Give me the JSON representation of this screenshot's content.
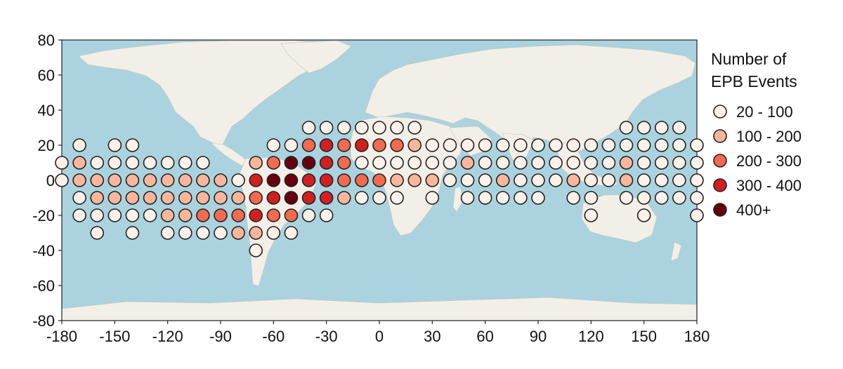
{
  "chart_data": {
    "type": "scatter",
    "title": "",
    "xlabel": "",
    "ylabel": "",
    "xlim": [
      -180,
      180
    ],
    "ylim": [
      -80,
      80
    ],
    "xticks": [
      "-180",
      "-150",
      "-120",
      "-90",
      "-60",
      "-30",
      "0",
      "30",
      "60",
      "90",
      "120",
      "150",
      "180"
    ],
    "yticks": [
      "80",
      "60",
      "40",
      "20",
      "0",
      "-20",
      "-40",
      "-60",
      "-80"
    ],
    "legend": {
      "title_lines": [
        "Number of",
        "EPB Events"
      ],
      "placement": "right",
      "bins": [
        {
          "label": "20 - 100",
          "color": "#fdf1ea"
        },
        {
          "label": "100 - 200",
          "color": "#f9b69c"
        },
        {
          "label": "200 - 300",
          "color": "#f26a4f"
        },
        {
          "label": "300 - 400",
          "color": "#d02022"
        },
        {
          "label": "400+",
          "color": "#67000d"
        }
      ]
    },
    "colors": {
      "ocean": "#aad3df",
      "land": "#f2efe9",
      "marker_edge": "#222222"
    },
    "points": [
      {
        "lon": -40,
        "lat": 30,
        "bin": 0
      },
      {
        "lon": -30,
        "lat": 30,
        "bin": 0
      },
      {
        "lon": -20,
        "lat": 30,
        "bin": 0
      },
      {
        "lon": -10,
        "lat": 30,
        "bin": 0
      },
      {
        "lon": 0,
        "lat": 30,
        "bin": 0
      },
      {
        "lon": 10,
        "lat": 30,
        "bin": 0
      },
      {
        "lon": 20,
        "lat": 30,
        "bin": 0
      },
      {
        "lon": 140,
        "lat": 30,
        "bin": 0
      },
      {
        "lon": 150,
        "lat": 30,
        "bin": 0
      },
      {
        "lon": 160,
        "lat": 30,
        "bin": 0
      },
      {
        "lon": 170,
        "lat": 30,
        "bin": 0
      },
      {
        "lon": -170,
        "lat": 20,
        "bin": 0
      },
      {
        "lon": -150,
        "lat": 20,
        "bin": 0
      },
      {
        "lon": -140,
        "lat": 20,
        "bin": 0
      },
      {
        "lon": -60,
        "lat": 20,
        "bin": 0
      },
      {
        "lon": -50,
        "lat": 20,
        "bin": 0
      },
      {
        "lon": -40,
        "lat": 20,
        "bin": 2
      },
      {
        "lon": -30,
        "lat": 20,
        "bin": 3
      },
      {
        "lon": -20,
        "lat": 20,
        "bin": 2
      },
      {
        "lon": -10,
        "lat": 20,
        "bin": 3
      },
      {
        "lon": 0,
        "lat": 20,
        "bin": 2
      },
      {
        "lon": 10,
        "lat": 20,
        "bin": 2
      },
      {
        "lon": 20,
        "lat": 20,
        "bin": 1
      },
      {
        "lon": 30,
        "lat": 20,
        "bin": 0
      },
      {
        "lon": 40,
        "lat": 20,
        "bin": 0
      },
      {
        "lon": 50,
        "lat": 20,
        "bin": 0
      },
      {
        "lon": 60,
        "lat": 20,
        "bin": 0
      },
      {
        "lon": 70,
        "lat": 20,
        "bin": 0
      },
      {
        "lon": 80,
        "lat": 20,
        "bin": 0
      },
      {
        "lon": 90,
        "lat": 20,
        "bin": 0
      },
      {
        "lon": 100,
        "lat": 20,
        "bin": 0
      },
      {
        "lon": 110,
        "lat": 20,
        "bin": 0
      },
      {
        "lon": 120,
        "lat": 20,
        "bin": 0
      },
      {
        "lon": 130,
        "lat": 20,
        "bin": 0
      },
      {
        "lon": 140,
        "lat": 20,
        "bin": 0
      },
      {
        "lon": 150,
        "lat": 20,
        "bin": 0
      },
      {
        "lon": 160,
        "lat": 20,
        "bin": 0
      },
      {
        "lon": 170,
        "lat": 20,
        "bin": 0
      },
      {
        "lon": 180,
        "lat": 20,
        "bin": 0
      },
      {
        "lon": -180,
        "lat": 10,
        "bin": 0
      },
      {
        "lon": -170,
        "lat": 10,
        "bin": 1
      },
      {
        "lon": -160,
        "lat": 10,
        "bin": 0
      },
      {
        "lon": -150,
        "lat": 10,
        "bin": 0
      },
      {
        "lon": -140,
        "lat": 10,
        "bin": 0
      },
      {
        "lon": -130,
        "lat": 10,
        "bin": 0
      },
      {
        "lon": -120,
        "lat": 10,
        "bin": 0
      },
      {
        "lon": -110,
        "lat": 10,
        "bin": 0
      },
      {
        "lon": -100,
        "lat": 10,
        "bin": 0
      },
      {
        "lon": -70,
        "lat": 10,
        "bin": 1
      },
      {
        "lon": -60,
        "lat": 10,
        "bin": 2
      },
      {
        "lon": -50,
        "lat": 10,
        "bin": 4
      },
      {
        "lon": -40,
        "lat": 10,
        "bin": 4
      },
      {
        "lon": -30,
        "lat": 10,
        "bin": 3
      },
      {
        "lon": -20,
        "lat": 10,
        "bin": 2
      },
      {
        "lon": -10,
        "lat": 10,
        "bin": 0
      },
      {
        "lon": 0,
        "lat": 10,
        "bin": 0
      },
      {
        "lon": 10,
        "lat": 10,
        "bin": 0
      },
      {
        "lon": 20,
        "lat": 10,
        "bin": 0
      },
      {
        "lon": 30,
        "lat": 10,
        "bin": 0
      },
      {
        "lon": 40,
        "lat": 10,
        "bin": 0
      },
      {
        "lon": 50,
        "lat": 10,
        "bin": 1
      },
      {
        "lon": 60,
        "lat": 10,
        "bin": 0
      },
      {
        "lon": 70,
        "lat": 10,
        "bin": 0
      },
      {
        "lon": 80,
        "lat": 10,
        "bin": 0
      },
      {
        "lon": 90,
        "lat": 10,
        "bin": 0
      },
      {
        "lon": 100,
        "lat": 10,
        "bin": 0
      },
      {
        "lon": 110,
        "lat": 10,
        "bin": 0
      },
      {
        "lon": 120,
        "lat": 10,
        "bin": 0
      },
      {
        "lon": 130,
        "lat": 10,
        "bin": 0
      },
      {
        "lon": 140,
        "lat": 10,
        "bin": 1
      },
      {
        "lon": 150,
        "lat": 10,
        "bin": 0
      },
      {
        "lon": 160,
        "lat": 10,
        "bin": 0
      },
      {
        "lon": 170,
        "lat": 10,
        "bin": 0
      },
      {
        "lon": 180,
        "lat": 10,
        "bin": 0
      },
      {
        "lon": -180,
        "lat": 0,
        "bin": 0
      },
      {
        "lon": -170,
        "lat": 0,
        "bin": 1
      },
      {
        "lon": -160,
        "lat": 0,
        "bin": 1
      },
      {
        "lon": -150,
        "lat": 0,
        "bin": 1
      },
      {
        "lon": -140,
        "lat": 0,
        "bin": 1
      },
      {
        "lon": -130,
        "lat": 0,
        "bin": 1
      },
      {
        "lon": -120,
        "lat": 0,
        "bin": 1
      },
      {
        "lon": -110,
        "lat": 0,
        "bin": 1
      },
      {
        "lon": -100,
        "lat": 0,
        "bin": 1
      },
      {
        "lon": -90,
        "lat": 0,
        "bin": 1
      },
      {
        "lon": -80,
        "lat": 0,
        "bin": 0
      },
      {
        "lon": -70,
        "lat": 0,
        "bin": 3
      },
      {
        "lon": -60,
        "lat": 0,
        "bin": 4
      },
      {
        "lon": -50,
        "lat": 0,
        "bin": 4
      },
      {
        "lon": -40,
        "lat": 0,
        "bin": 3
      },
      {
        "lon": -30,
        "lat": 0,
        "bin": 3
      },
      {
        "lon": -20,
        "lat": 0,
        "bin": 2
      },
      {
        "lon": -10,
        "lat": 0,
        "bin": 2
      },
      {
        "lon": 0,
        "lat": 0,
        "bin": 2
      },
      {
        "lon": 10,
        "lat": 0,
        "bin": 1
      },
      {
        "lon": 20,
        "lat": 0,
        "bin": 1
      },
      {
        "lon": 30,
        "lat": 0,
        "bin": 1
      },
      {
        "lon": 40,
        "lat": 0,
        "bin": 0
      },
      {
        "lon": 50,
        "lat": 0,
        "bin": 0
      },
      {
        "lon": 60,
        "lat": 0,
        "bin": 0
      },
      {
        "lon": 70,
        "lat": 0,
        "bin": 1
      },
      {
        "lon": 80,
        "lat": 0,
        "bin": 0
      },
      {
        "lon": 90,
        "lat": 0,
        "bin": 0
      },
      {
        "lon": 100,
        "lat": 0,
        "bin": 0
      },
      {
        "lon": 110,
        "lat": 0,
        "bin": 1
      },
      {
        "lon": 120,
        "lat": 0,
        "bin": 0
      },
      {
        "lon": 130,
        "lat": 0,
        "bin": 0
      },
      {
        "lon": 140,
        "lat": 0,
        "bin": 1
      },
      {
        "lon": 150,
        "lat": 0,
        "bin": 0
      },
      {
        "lon": 160,
        "lat": 0,
        "bin": 0
      },
      {
        "lon": 170,
        "lat": 0,
        "bin": 0
      },
      {
        "lon": 180,
        "lat": 0,
        "bin": 0
      },
      {
        "lon": -170,
        "lat": -10,
        "bin": 0
      },
      {
        "lon": -160,
        "lat": -10,
        "bin": 1
      },
      {
        "lon": -150,
        "lat": -10,
        "bin": 1
      },
      {
        "lon": -140,
        "lat": -10,
        "bin": 1
      },
      {
        "lon": -130,
        "lat": -10,
        "bin": 1
      },
      {
        "lon": -120,
        "lat": -10,
        "bin": 1
      },
      {
        "lon": -110,
        "lat": -10,
        "bin": 1
      },
      {
        "lon": -100,
        "lat": -10,
        "bin": 1
      },
      {
        "lon": -90,
        "lat": -10,
        "bin": 1
      },
      {
        "lon": -80,
        "lat": -10,
        "bin": 1
      },
      {
        "lon": -70,
        "lat": -10,
        "bin": 2
      },
      {
        "lon": -60,
        "lat": -10,
        "bin": 3
      },
      {
        "lon": -50,
        "lat": -10,
        "bin": 4
      },
      {
        "lon": -40,
        "lat": -10,
        "bin": 3
      },
      {
        "lon": -30,
        "lat": -10,
        "bin": 3
      },
      {
        "lon": -20,
        "lat": -10,
        "bin": 1
      },
      {
        "lon": -10,
        "lat": -10,
        "bin": 0
      },
      {
        "lon": 0,
        "lat": -10,
        "bin": 0
      },
      {
        "lon": 10,
        "lat": -10,
        "bin": 0
      },
      {
        "lon": 30,
        "lat": -10,
        "bin": 0
      },
      {
        "lon": 50,
        "lat": -10,
        "bin": 0
      },
      {
        "lon": 60,
        "lat": -10,
        "bin": 0
      },
      {
        "lon": 70,
        "lat": -10,
        "bin": 0
      },
      {
        "lon": 80,
        "lat": -10,
        "bin": 0
      },
      {
        "lon": 90,
        "lat": -10,
        "bin": 0
      },
      {
        "lon": 110,
        "lat": -10,
        "bin": 0
      },
      {
        "lon": 120,
        "lat": -10,
        "bin": 0
      },
      {
        "lon": 140,
        "lat": -10,
        "bin": 0
      },
      {
        "lon": 150,
        "lat": -10,
        "bin": 0
      },
      {
        "lon": 160,
        "lat": -10,
        "bin": 0
      },
      {
        "lon": 170,
        "lat": -10,
        "bin": 0
      },
      {
        "lon": 180,
        "lat": -10,
        "bin": 0
      },
      {
        "lon": -170,
        "lat": -20,
        "bin": 0
      },
      {
        "lon": -160,
        "lat": -20,
        "bin": 0
      },
      {
        "lon": -150,
        "lat": -20,
        "bin": 0
      },
      {
        "lon": -140,
        "lat": -20,
        "bin": 0
      },
      {
        "lon": -130,
        "lat": -20,
        "bin": 0
      },
      {
        "lon": -120,
        "lat": -20,
        "bin": 1
      },
      {
        "lon": -110,
        "lat": -20,
        "bin": 1
      },
      {
        "lon": -100,
        "lat": -20,
        "bin": 2
      },
      {
        "lon": -90,
        "lat": -20,
        "bin": 2
      },
      {
        "lon": -80,
        "lat": -20,
        "bin": 2
      },
      {
        "lon": -70,
        "lat": -20,
        "bin": 3
      },
      {
        "lon": -60,
        "lat": -20,
        "bin": 2
      },
      {
        "lon": -50,
        "lat": -20,
        "bin": 2
      },
      {
        "lon": -40,
        "lat": -20,
        "bin": 0
      },
      {
        "lon": -30,
        "lat": -20,
        "bin": 0
      },
      {
        "lon": 120,
        "lat": -20,
        "bin": 0
      },
      {
        "lon": 150,
        "lat": -20,
        "bin": 0
      },
      {
        "lon": 180,
        "lat": -20,
        "bin": 0
      },
      {
        "lon": -160,
        "lat": -30,
        "bin": 0
      },
      {
        "lon": -140,
        "lat": -30,
        "bin": 0
      },
      {
        "lon": -120,
        "lat": -30,
        "bin": 0
      },
      {
        "lon": -110,
        "lat": -30,
        "bin": 0
      },
      {
        "lon": -100,
        "lat": -30,
        "bin": 0
      },
      {
        "lon": -90,
        "lat": -30,
        "bin": 0
      },
      {
        "lon": -80,
        "lat": -30,
        "bin": 1
      },
      {
        "lon": -70,
        "lat": -30,
        "bin": 1
      },
      {
        "lon": -60,
        "lat": -30,
        "bin": 0
      },
      {
        "lon": -50,
        "lat": -30,
        "bin": 0
      },
      {
        "lon": -70,
        "lat": -40,
        "bin": 0
      }
    ]
  }
}
